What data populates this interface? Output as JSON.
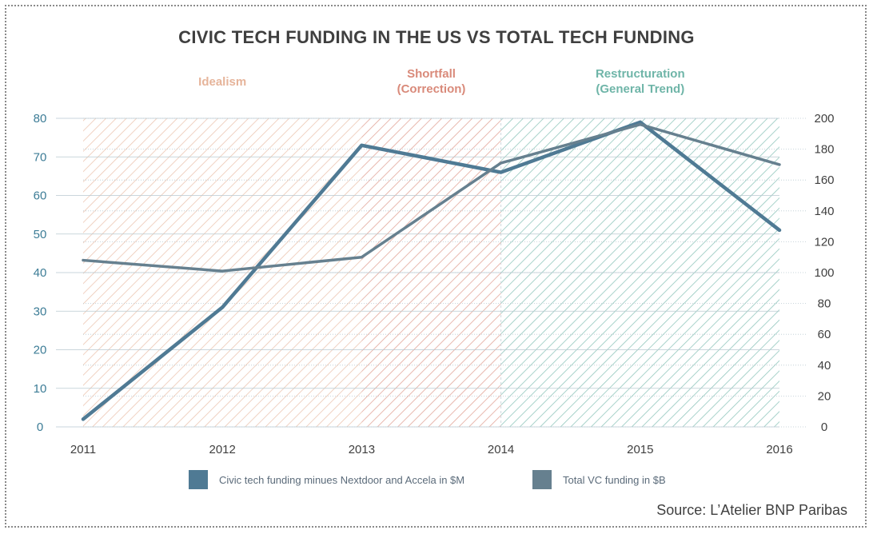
{
  "chart_data": {
    "type": "line",
    "title": "CIVIC TECH FUNDING IN THE US VS TOTAL TECH FUNDING",
    "x": [
      "2011",
      "2012",
      "2013",
      "2014",
      "2015",
      "2016"
    ],
    "ylim_left": [
      0,
      80
    ],
    "yticks_left": [
      0,
      10,
      20,
      30,
      40,
      50,
      60,
      70,
      80
    ],
    "ylim_right": [
      0,
      200
    ],
    "yticks_right": [
      0,
      20,
      40,
      60,
      80,
      100,
      120,
      140,
      160,
      180,
      200
    ],
    "grid": true,
    "legend_position": "bottom",
    "series": [
      {
        "name": "Civic tech funding minues Nextdoor and Accela in $M",
        "axis": "left",
        "values": [
          2,
          31,
          73,
          66,
          79,
          51
        ],
        "color": "#4f7a94"
      },
      {
        "name": "Total VC funding in $B",
        "axis": "right",
        "values": [
          108,
          101,
          110,
          171,
          196,
          170
        ],
        "color": "#66808f"
      }
    ],
    "phases": [
      {
        "label_lines": [
          "Idealism"
        ],
        "from": "2011",
        "to": "2013",
        "color": "#e6b49a"
      },
      {
        "label_lines": [
          "Shortfall",
          "(Correction)"
        ],
        "from": "2013",
        "to": "2014",
        "color": "#d98a7a"
      },
      {
        "label_lines": [
          "Restructuration",
          "(General Trend)"
        ],
        "from": "2014",
        "to": "2016",
        "color": "#6fb5a8"
      }
    ]
  },
  "source": "Source: L’Atelier BNP Paribas",
  "colors": {
    "title": "#3f3f3f",
    "axis_text": "#3c7c96",
    "grid": "#b9c9d0"
  }
}
